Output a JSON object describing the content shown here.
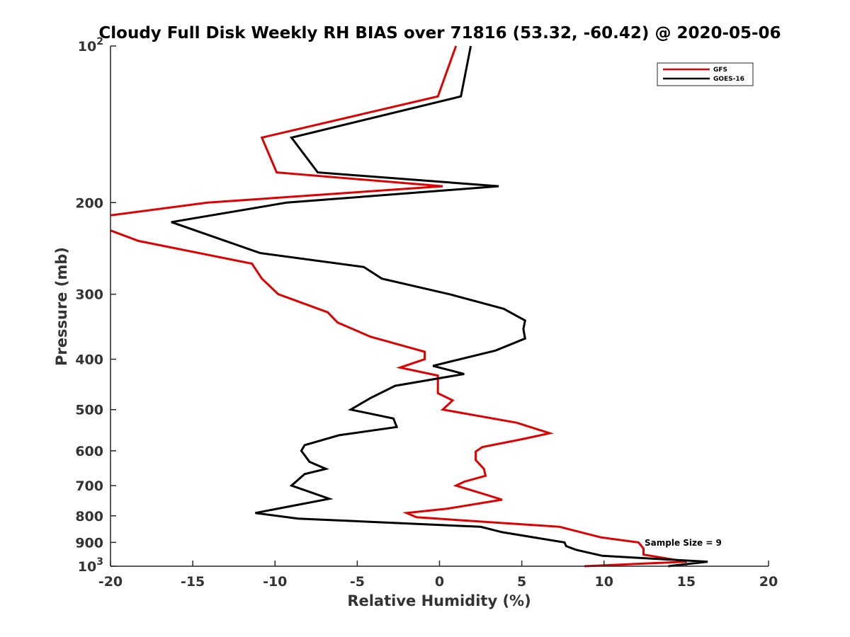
{
  "chart_data": {
    "type": "line",
    "title": "Cloudy Full Disk Weekly RH BIAS over 71816 (53.32, -60.42) @ 2020-05-06",
    "xlabel": "Relative Humidity (%)",
    "ylabel": "Pressure (mb)",
    "xlim": [
      -20,
      20
    ],
    "ylim": [
      100,
      1000
    ],
    "yscale": "log",
    "y_reversed": true,
    "grid": false,
    "legend_position": "top-right",
    "x_ticks": [
      "-20",
      "-15",
      "-10",
      "-5",
      "0",
      "5",
      "10",
      "15",
      "20"
    ],
    "y_ticks": [
      {
        "value": 100,
        "base": "10",
        "exp": "2"
      },
      {
        "value": 200,
        "label": "200"
      },
      {
        "value": 300,
        "label": "300"
      },
      {
        "value": 400,
        "label": "400"
      },
      {
        "value": 500,
        "label": "500"
      },
      {
        "value": 600,
        "label": "600"
      },
      {
        "value": 700,
        "label": "700"
      },
      {
        "value": 800,
        "label": "800"
      },
      {
        "value": 900,
        "label": "900"
      },
      {
        "value": 1000,
        "base": "10",
        "exp": "3"
      }
    ],
    "series": [
      {
        "name": "GFS",
        "color": "#e00000",
        "points": [
          [
            1.0,
            100
          ],
          [
            -0.1,
            125
          ],
          [
            -10.8,
            150
          ],
          [
            -9.9,
            175
          ],
          [
            0.2,
            186
          ],
          [
            -14.1,
            200
          ],
          [
            -20.2,
            212
          ],
          [
            -20.2,
            225
          ],
          [
            -18.3,
            237
          ],
          [
            -11.4,
            262
          ],
          [
            -10.8,
            280
          ],
          [
            -9.8,
            300
          ],
          [
            -6.8,
            325
          ],
          [
            -6.2,
            340
          ],
          [
            -4.2,
            362
          ],
          [
            -0.9,
            387
          ],
          [
            -0.9,
            400
          ],
          [
            -2.4,
            415
          ],
          [
            -0.1,
            430
          ],
          [
            -0.1,
            465
          ],
          [
            0.8,
            480
          ],
          [
            0.2,
            500
          ],
          [
            4.7,
            530
          ],
          [
            6.7,
            555
          ],
          [
            5.0,
            570
          ],
          [
            2.6,
            590
          ],
          [
            2.2,
            602
          ],
          [
            2.2,
            625
          ],
          [
            2.7,
            650
          ],
          [
            2.8,
            670
          ],
          [
            1.5,
            688
          ],
          [
            1.0,
            700
          ],
          [
            2.6,
            725
          ],
          [
            3.8,
            745
          ],
          [
            0.5,
            775
          ],
          [
            -2.0,
            790
          ],
          [
            -1.4,
            805
          ],
          [
            7.3,
            840
          ],
          [
            9.8,
            880
          ],
          [
            12.1,
            900
          ],
          [
            12.4,
            925
          ],
          [
            12.4,
            950
          ],
          [
            15.0,
            980
          ],
          [
            8.8,
            1000
          ]
        ]
      },
      {
        "name": "GOES-16",
        "color": "#000000",
        "points": [
          [
            1.9,
            100
          ],
          [
            1.3,
            125
          ],
          [
            -9.0,
            150
          ],
          [
            -7.4,
            175
          ],
          [
            3.6,
            186
          ],
          [
            -9.3,
            200
          ],
          [
            -16.3,
            218
          ],
          [
            -10.9,
            250
          ],
          [
            -4.6,
            266
          ],
          [
            -3.5,
            280
          ],
          [
            0.6,
            300
          ],
          [
            3.9,
            320
          ],
          [
            5.2,
            337
          ],
          [
            5.1,
            350
          ],
          [
            5.2,
            365
          ],
          [
            3.4,
            385
          ],
          [
            -0.4,
            412
          ],
          [
            1.5,
            427
          ],
          [
            -2.7,
            450
          ],
          [
            -4.2,
            475
          ],
          [
            -5.4,
            500
          ],
          [
            -2.8,
            520
          ],
          [
            -2.6,
            540
          ],
          [
            -6.1,
            560
          ],
          [
            -8.2,
            585
          ],
          [
            -8.4,
            600
          ],
          [
            -7.9,
            630
          ],
          [
            -6.9,
            650
          ],
          [
            -8.2,
            665
          ],
          [
            -9.0,
            700
          ],
          [
            -6.7,
            742
          ],
          [
            -11.2,
            790
          ],
          [
            -8.6,
            810
          ],
          [
            2.5,
            840
          ],
          [
            3.8,
            860
          ],
          [
            7.6,
            900
          ],
          [
            7.7,
            915
          ],
          [
            8.3,
            930
          ],
          [
            9.9,
            955
          ],
          [
            16.3,
            980
          ],
          [
            13.9,
            1000
          ]
        ]
      }
    ],
    "annotations": [
      {
        "text": "Sample Size = 9"
      }
    ]
  }
}
